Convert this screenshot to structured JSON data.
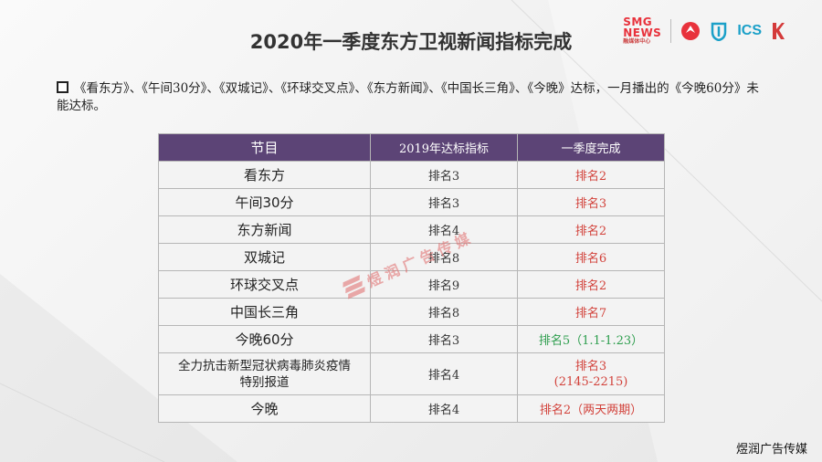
{
  "slide": {
    "title": "2020年一季度东方卫视新闻指标完成",
    "lead_text": "《看东方》、《午间30分》、《双城记》、《环球交叉点》、《东方新闻》、《中国长三角》、《今晚》达标，一月播出的《今晚60分》未能达标。"
  },
  "logos": {
    "smg_line1": "SMG",
    "smg_line2": "NEWS",
    "smg_line3": "融媒体中心",
    "ics": "ICS"
  },
  "table": {
    "headers": [
      "节目",
      "2019年达标指标",
      "一季度完成"
    ],
    "rows": [
      {
        "program": "看东方",
        "target": "排名3",
        "result": "排名2",
        "result_color": "red"
      },
      {
        "program": "午间30分",
        "target": "排名3",
        "result": "排名3",
        "result_color": "red"
      },
      {
        "program": "东方新闻",
        "target": "排名4",
        "result": "排名2",
        "result_color": "red"
      },
      {
        "program": "双城记",
        "target": "排名8",
        "result": "排名6",
        "result_color": "red"
      },
      {
        "program": "环球交叉点",
        "target": "排名9",
        "result": "排名2",
        "result_color": "red"
      },
      {
        "program": "中国长三角",
        "target": "排名8",
        "result": "排名7",
        "result_color": "red"
      },
      {
        "program": "今晚60分",
        "target": "排名3",
        "result": "排名5（1.1-1.23）",
        "result_color": "green"
      },
      {
        "program": "全力抗击新型冠状病毒肺炎疫情特别报道",
        "program_line1": "全力抗击新型冠状病毒肺炎疫情",
        "program_line2": "特别报道",
        "target": "排名4",
        "result": "排名3 (2145-2215)",
        "result_line1": "排名3",
        "result_line2": "(2145-2215)",
        "result_color": "red"
      },
      {
        "program": "今晚",
        "target": "排名4",
        "result": "排名2（两天两期）",
        "result_color": "red"
      }
    ]
  },
  "watermarks": {
    "center": "煜润广告传媒",
    "corner": "煜润广告传媒"
  },
  "colors": {
    "header_bg": "#5c4476",
    "red_value": "#d2413a",
    "green_value": "#2e9e4e",
    "smg_red": "#e8323c",
    "ics_blue": "#1aa0c8"
  }
}
